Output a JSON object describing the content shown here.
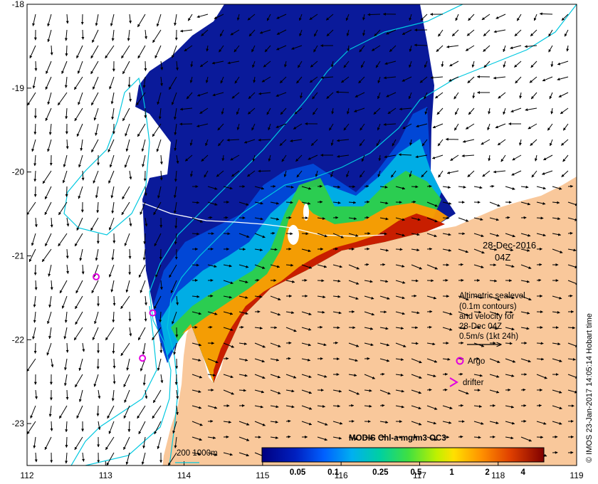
{
  "map": {
    "x_ticks": [
      "112",
      "113",
      "114",
      "115",
      "116",
      "117",
      "118",
      "119"
    ],
    "y_ticks": [
      "-18",
      "-19",
      "-20",
      "-21",
      "-22",
      "-23"
    ],
    "lon_range": [
      112,
      119
    ],
    "lat_range": [
      -23.5,
      -18
    ]
  },
  "colors": {
    "land": "#f9c89b",
    "sea_bg": "#ffffff",
    "contour": "#00c8e0",
    "sealevel": "#ffffff",
    "argo": "#e000e0",
    "arrows": "#000000"
  },
  "labels": {
    "date": "28-Dec-2016",
    "time": "04Z",
    "legend_lines": [
      "Altimetric sealevel",
      "(0.1m contours)",
      "and velocity for",
      "28-Dec 04Z",
      "0.5m/s (1kt 24h)"
    ],
    "argo": "Argo",
    "drifter": "drifter",
    "bathy": "200  1000m",
    "colorbar_title": "MODIS Chl-a mg/m3 OC3",
    "colorbar_ticks": [
      "0.05",
      "0.1",
      "0.25",
      "0.5",
      "1",
      "2",
      "4"
    ],
    "credit": "© IMOS 23-Jan-2017 14:05:14 Hobart time"
  },
  "argo_floats": [
    {
      "lon": 112.88,
      "lat": -21.25
    },
    {
      "lon": 113.6,
      "lat": -21.68
    },
    {
      "lon": 113.47,
      "lat": -22.22
    }
  ]
}
